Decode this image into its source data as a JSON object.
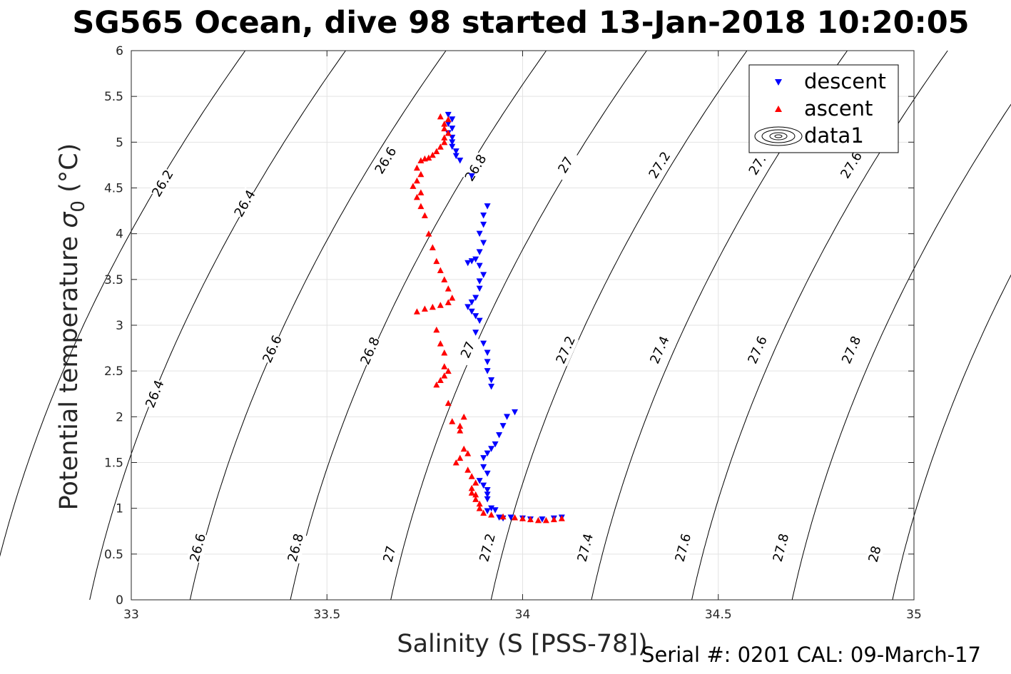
{
  "chart_data": {
    "type": "scatter",
    "title": "SG565 Ocean, dive 98 started 13-Jan-2018 10:20:05",
    "xlabel": "Salinity (S [PSS-78])",
    "ylabel_main": "Potential temperature ",
    "ylabel_sigma": "σ",
    "ylabel_sub": "0",
    "ylabel_unit": " (°C)",
    "xlim": [
      33,
      35
    ],
    "ylim": [
      0,
      6
    ],
    "xticks": [
      "33",
      "33.5",
      "34",
      "34.5",
      "35"
    ],
    "yticks": [
      "0",
      "0.5",
      "1",
      "1.5",
      "2",
      "2.5",
      "3",
      "3.5",
      "4",
      "4.5",
      "5",
      "5.5",
      "6"
    ],
    "grid": true,
    "legend_position": "top-right",
    "footer": "Serial #: 0201  CAL: 09-March-17",
    "contour_levels": [
      "26.2",
      "26.4",
      "26.6",
      "26.8",
      "27",
      "27.2",
      "27.4",
      "27.6",
      "27.8",
      "28"
    ],
    "contour_label_list": [
      {
        "text": "26.2",
        "x": 33.08,
        "y": 4.55
      },
      {
        "text": "26.4",
        "x": 33.29,
        "y": 4.33
      },
      {
        "text": "26.6",
        "x": 33.65,
        "y": 4.8
      },
      {
        "text": "26.8",
        "x": 33.88,
        "y": 4.72
      },
      {
        "text": "27",
        "x": 34.11,
        "y": 4.75
      },
      {
        "text": "27.2",
        "x": 34.35,
        "y": 4.75
      },
      {
        "text": "27.",
        "x": 34.6,
        "y": 4.75
      },
      {
        "text": "27.6",
        "x": 34.84,
        "y": 4.75
      },
      {
        "text": "26.4",
        "x": 33.06,
        "y": 2.25
      },
      {
        "text": "26.6",
        "x": 33.36,
        "y": 2.74
      },
      {
        "text": "26.8",
        "x": 33.61,
        "y": 2.72
      },
      {
        "text": "27",
        "x": 33.86,
        "y": 2.73
      },
      {
        "text": "27.2",
        "x": 34.11,
        "y": 2.73
      },
      {
        "text": "27.4",
        "x": 34.35,
        "y": 2.73
      },
      {
        "text": "27.6",
        "x": 34.6,
        "y": 2.73
      },
      {
        "text": "27.8",
        "x": 34.84,
        "y": 2.73
      },
      {
        "text": "26.6",
        "x": 33.17,
        "y": 0.57
      },
      {
        "text": "26.8",
        "x": 33.42,
        "y": 0.57
      },
      {
        "text": "27",
        "x": 33.66,
        "y": 0.5
      },
      {
        "text": "27.2",
        "x": 33.91,
        "y": 0.57
      },
      {
        "text": "27.4",
        "x": 34.16,
        "y": 0.57
      },
      {
        "text": "27.6",
        "x": 34.41,
        "y": 0.57
      },
      {
        "text": "27.8",
        "x": 34.66,
        "y": 0.57
      },
      {
        "text": "28",
        "x": 34.9,
        "y": 0.5
      }
    ],
    "series": [
      {
        "name": "descent",
        "color": "#0000ff",
        "marker": "triangle-down",
        "points": [
          [
            33.81,
            5.3
          ],
          [
            33.82,
            5.25
          ],
          [
            33.81,
            5.2
          ],
          [
            33.82,
            5.15
          ],
          [
            33.81,
            5.1
          ],
          [
            33.82,
            5.05
          ],
          [
            33.82,
            5.0
          ],
          [
            33.82,
            4.95
          ],
          [
            33.83,
            4.9
          ],
          [
            33.83,
            4.85
          ],
          [
            33.84,
            4.8
          ],
          [
            33.87,
            4.63
          ],
          [
            33.91,
            4.3
          ],
          [
            33.9,
            4.2
          ],
          [
            33.9,
            4.1
          ],
          [
            33.89,
            4.0
          ],
          [
            33.9,
            3.9
          ],
          [
            33.89,
            3.8
          ],
          [
            33.88,
            3.72
          ],
          [
            33.87,
            3.7
          ],
          [
            33.86,
            3.68
          ],
          [
            33.89,
            3.65
          ],
          [
            33.9,
            3.55
          ],
          [
            33.89,
            3.48
          ],
          [
            33.89,
            3.4
          ],
          [
            33.88,
            3.3
          ],
          [
            33.87,
            3.25
          ],
          [
            33.86,
            3.2
          ],
          [
            33.87,
            3.15
          ],
          [
            33.88,
            3.1
          ],
          [
            33.89,
            3.05
          ],
          [
            33.88,
            2.92
          ],
          [
            33.9,
            2.8
          ],
          [
            33.91,
            2.7
          ],
          [
            33.91,
            2.6
          ],
          [
            33.91,
            2.5
          ],
          [
            33.92,
            2.4
          ],
          [
            33.92,
            2.33
          ],
          [
            33.98,
            2.05
          ],
          [
            33.96,
            2.0
          ],
          [
            33.95,
            1.9
          ],
          [
            33.94,
            1.8
          ],
          [
            33.93,
            1.7
          ],
          [
            33.92,
            1.65
          ],
          [
            33.91,
            1.6
          ],
          [
            33.9,
            1.55
          ],
          [
            33.9,
            1.45
          ],
          [
            33.91,
            1.38
          ],
          [
            33.89,
            1.3
          ],
          [
            33.9,
            1.25
          ],
          [
            33.91,
            1.2
          ],
          [
            33.91,
            1.15
          ],
          [
            33.91,
            1.1
          ],
          [
            33.92,
            1.0
          ],
          [
            33.93,
            0.98
          ],
          [
            33.91,
            0.97
          ],
          [
            33.94,
            0.9
          ],
          [
            33.95,
            0.89
          ],
          [
            33.97,
            0.9
          ],
          [
            34.0,
            0.89
          ],
          [
            34.02,
            0.88
          ],
          [
            34.05,
            0.88
          ],
          [
            34.08,
            0.89
          ],
          [
            34.1,
            0.9
          ]
        ]
      },
      {
        "name": "ascent",
        "color": "#ff0000",
        "marker": "triangle-up",
        "points": [
          [
            33.79,
            5.28
          ],
          [
            33.81,
            5.25
          ],
          [
            33.8,
            5.2
          ],
          [
            33.8,
            5.15
          ],
          [
            33.81,
            5.1
          ],
          [
            33.8,
            5.05
          ],
          [
            33.8,
            5.0
          ],
          [
            33.79,
            4.95
          ],
          [
            33.78,
            4.9
          ],
          [
            33.77,
            4.86
          ],
          [
            33.76,
            4.83
          ],
          [
            33.75,
            4.82
          ],
          [
            33.74,
            4.8
          ],
          [
            33.73,
            4.72
          ],
          [
            33.74,
            4.65
          ],
          [
            33.73,
            4.58
          ],
          [
            33.72,
            4.52
          ],
          [
            33.74,
            4.45
          ],
          [
            33.73,
            4.4
          ],
          [
            33.74,
            4.3
          ],
          [
            33.75,
            4.2
          ],
          [
            33.76,
            4.0
          ],
          [
            33.77,
            3.85
          ],
          [
            33.78,
            3.7
          ],
          [
            33.79,
            3.6
          ],
          [
            33.8,
            3.5
          ],
          [
            33.81,
            3.4
          ],
          [
            33.82,
            3.3
          ],
          [
            33.81,
            3.25
          ],
          [
            33.79,
            3.22
          ],
          [
            33.77,
            3.2
          ],
          [
            33.75,
            3.18
          ],
          [
            33.73,
            3.15
          ],
          [
            33.78,
            2.95
          ],
          [
            33.79,
            2.8
          ],
          [
            33.8,
            2.7
          ],
          [
            33.8,
            2.55
          ],
          [
            33.81,
            2.5
          ],
          [
            33.8,
            2.45
          ],
          [
            33.79,
            2.4
          ],
          [
            33.78,
            2.35
          ],
          [
            33.81,
            2.15
          ],
          [
            33.82,
            1.95
          ],
          [
            33.84,
            1.9
          ],
          [
            33.85,
            2.0
          ],
          [
            33.84,
            1.85
          ],
          [
            33.85,
            1.65
          ],
          [
            33.86,
            1.6
          ],
          [
            33.84,
            1.55
          ],
          [
            33.83,
            1.5
          ],
          [
            33.86,
            1.42
          ],
          [
            33.87,
            1.35
          ],
          [
            33.88,
            1.28
          ],
          [
            33.87,
            1.22
          ],
          [
            33.87,
            1.17
          ],
          [
            33.88,
            1.15
          ],
          [
            33.88,
            1.1
          ],
          [
            33.89,
            1.05
          ],
          [
            33.89,
            1.0
          ],
          [
            33.9,
            0.95
          ],
          [
            33.92,
            0.93
          ],
          [
            33.95,
            0.91
          ],
          [
            33.98,
            0.9
          ],
          [
            34.0,
            0.89
          ],
          [
            34.02,
            0.88
          ],
          [
            34.04,
            0.87
          ],
          [
            34.06,
            0.87
          ],
          [
            34.08,
            0.88
          ],
          [
            34.1,
            0.89
          ]
        ]
      },
      {
        "name": "data1",
        "color": "#000000",
        "marker": "contour"
      }
    ]
  }
}
